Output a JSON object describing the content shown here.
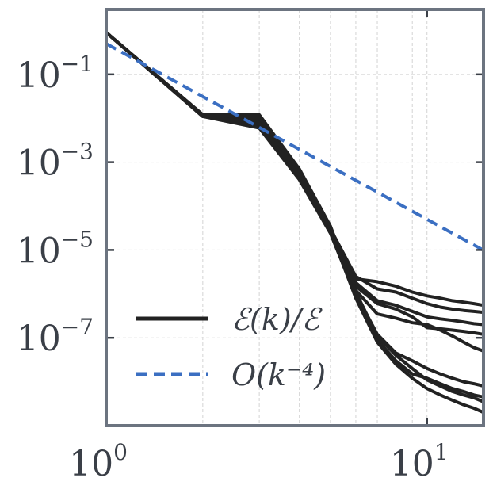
{
  "chart_data": {
    "type": "line",
    "title": "",
    "xlabel": "",
    "ylabel": "",
    "xscale": "log",
    "yscale": "log",
    "xlim": [
      1,
      15
    ],
    "ylim": [
      1e-09,
      3
    ],
    "grid": true,
    "legend_position": "lower-left",
    "x_ticks": [
      {
        "value": 1,
        "base": "10",
        "exp": "0"
      },
      {
        "value": 10,
        "base": "10",
        "exp": "1"
      }
    ],
    "y_ticks": [
      {
        "value": 0.1,
        "base": "10",
        "exp": "−1"
      },
      {
        "value": 0.001,
        "base": "10",
        "exp": "−3"
      },
      {
        "value": 1e-05,
        "base": "10",
        "exp": "−5"
      },
      {
        "value": 1e-07,
        "base": "10",
        "exp": "−7"
      }
    ],
    "legend": [
      {
        "label": "ℰ(k)/ℰ",
        "style": "solid",
        "color": "#222222"
      },
      {
        "label": "O(k⁻⁴)",
        "style": "dashed",
        "color": "#3b6fc2"
      }
    ],
    "series_group_label": "ℰ(k)/ℰ",
    "series": [
      {
        "x": [
          1,
          2,
          3,
          4,
          5,
          6,
          7,
          8,
          9,
          10,
          11,
          12,
          13,
          14,
          15
        ],
        "values": [
          0.9,
          0.012,
          0.009,
          0.00055,
          3e-05,
          2.2e-06,
          1.9e-06,
          1.5e-06,
          1.1e-06,
          9e-07,
          8e-07,
          7e-07,
          6.5e-07,
          6e-07,
          5.5e-07
        ]
      },
      {
        "x": [
          1,
          2,
          3,
          4,
          5,
          6,
          7,
          8,
          9,
          10,
          11,
          12,
          13,
          14,
          15
        ],
        "values": [
          0.9,
          0.012,
          0.01,
          0.0006,
          3e-05,
          2.5e-06,
          1.3e-06,
          1.1e-06,
          8e-07,
          6e-07,
          5e-07,
          4.5e-07,
          4.2e-07,
          4e-07,
          3.8e-07
        ]
      },
      {
        "x": [
          1,
          2,
          3,
          4,
          5,
          6,
          7,
          8,
          9,
          10,
          11,
          12,
          13,
          14,
          15
        ],
        "values": [
          0.9,
          0.011,
          0.008,
          0.0005,
          2.8e-05,
          1.8e-06,
          7e-07,
          5.5e-07,
          4e-07,
          3e-07,
          2.7e-07,
          2.5e-07,
          2.3e-07,
          2.1e-07,
          2e-07
        ]
      },
      {
        "x": [
          1,
          2,
          3,
          4,
          5,
          6,
          7,
          8,
          9,
          10,
          11,
          12,
          13,
          14,
          15
        ],
        "values": [
          0.9,
          0.012,
          0.011,
          0.00065,
          3.2e-05,
          1.5e-06,
          6e-07,
          4.5e-07,
          3e-07,
          1.7e-07,
          1.6e-07,
          1.5e-07,
          1.4e-07,
          1.3e-07,
          1.2e-07
        ]
      },
      {
        "x": [
          1,
          2,
          3,
          4,
          5,
          6,
          7,
          8,
          9,
          10,
          11,
          12,
          13,
          14,
          15
        ],
        "values": [
          0.9,
          0.011,
          0.007,
          0.00045,
          2.6e-05,
          1.2e-06,
          3.5e-07,
          2.8e-07,
          2.2e-07,
          2e-07,
          1.5e-07,
          1.1e-07,
          8e-08,
          6e-08,
          5e-08
        ]
      },
      {
        "x": [
          1,
          2,
          3,
          4,
          5,
          6,
          7,
          8,
          9,
          10,
          11,
          12,
          13,
          14,
          15
        ],
        "values": [
          0.9,
          0.012,
          0.012,
          0.0007,
          3.5e-05,
          1e-06,
          1.2e-07,
          4.5e-08,
          3e-08,
          2e-08,
          1.5e-08,
          1.2e-08,
          1e-08,
          9e-09,
          8e-09
        ]
      },
      {
        "x": [
          1,
          2,
          3,
          4,
          5,
          6,
          7,
          8,
          9,
          10,
          11,
          12,
          13,
          14,
          15
        ],
        "values": [
          0.9,
          0.011,
          0.006,
          0.0004,
          2.4e-05,
          9e-07,
          9e-08,
          3e-08,
          1.5e-08,
          1.2e-08,
          9e-09,
          7e-09,
          6e-09,
          5e-09,
          4.5e-09
        ]
      },
      {
        "x": [
          1,
          2,
          3,
          4,
          5,
          6,
          7,
          8,
          9,
          10,
          11,
          12,
          13,
          14,
          15
        ],
        "values": [
          0.9,
          0.012,
          0.0105,
          0.00058,
          3e-05,
          1.1e-06,
          1.1e-07,
          4e-08,
          2e-08,
          1.1e-08,
          8e-09,
          6e-09,
          5e-09,
          4.3e-09,
          3.5e-09
        ]
      },
      {
        "x": [
          1,
          2,
          3,
          4,
          5,
          6,
          7,
          8,
          9,
          10,
          11,
          12,
          13,
          14,
          15
        ],
        "values": [
          0.9,
          0.011,
          0.0075,
          0.00048,
          2.7e-05,
          8e-07,
          8e-08,
          2.5e-08,
          1.2e-08,
          7e-09,
          5e-09,
          3.8e-09,
          3e-09,
          2.5e-09,
          2e-09
        ]
      }
    ],
    "reference_line": {
      "label": "O(k⁻⁴)",
      "coefficient": 0.5,
      "exponent": -4
    }
  }
}
